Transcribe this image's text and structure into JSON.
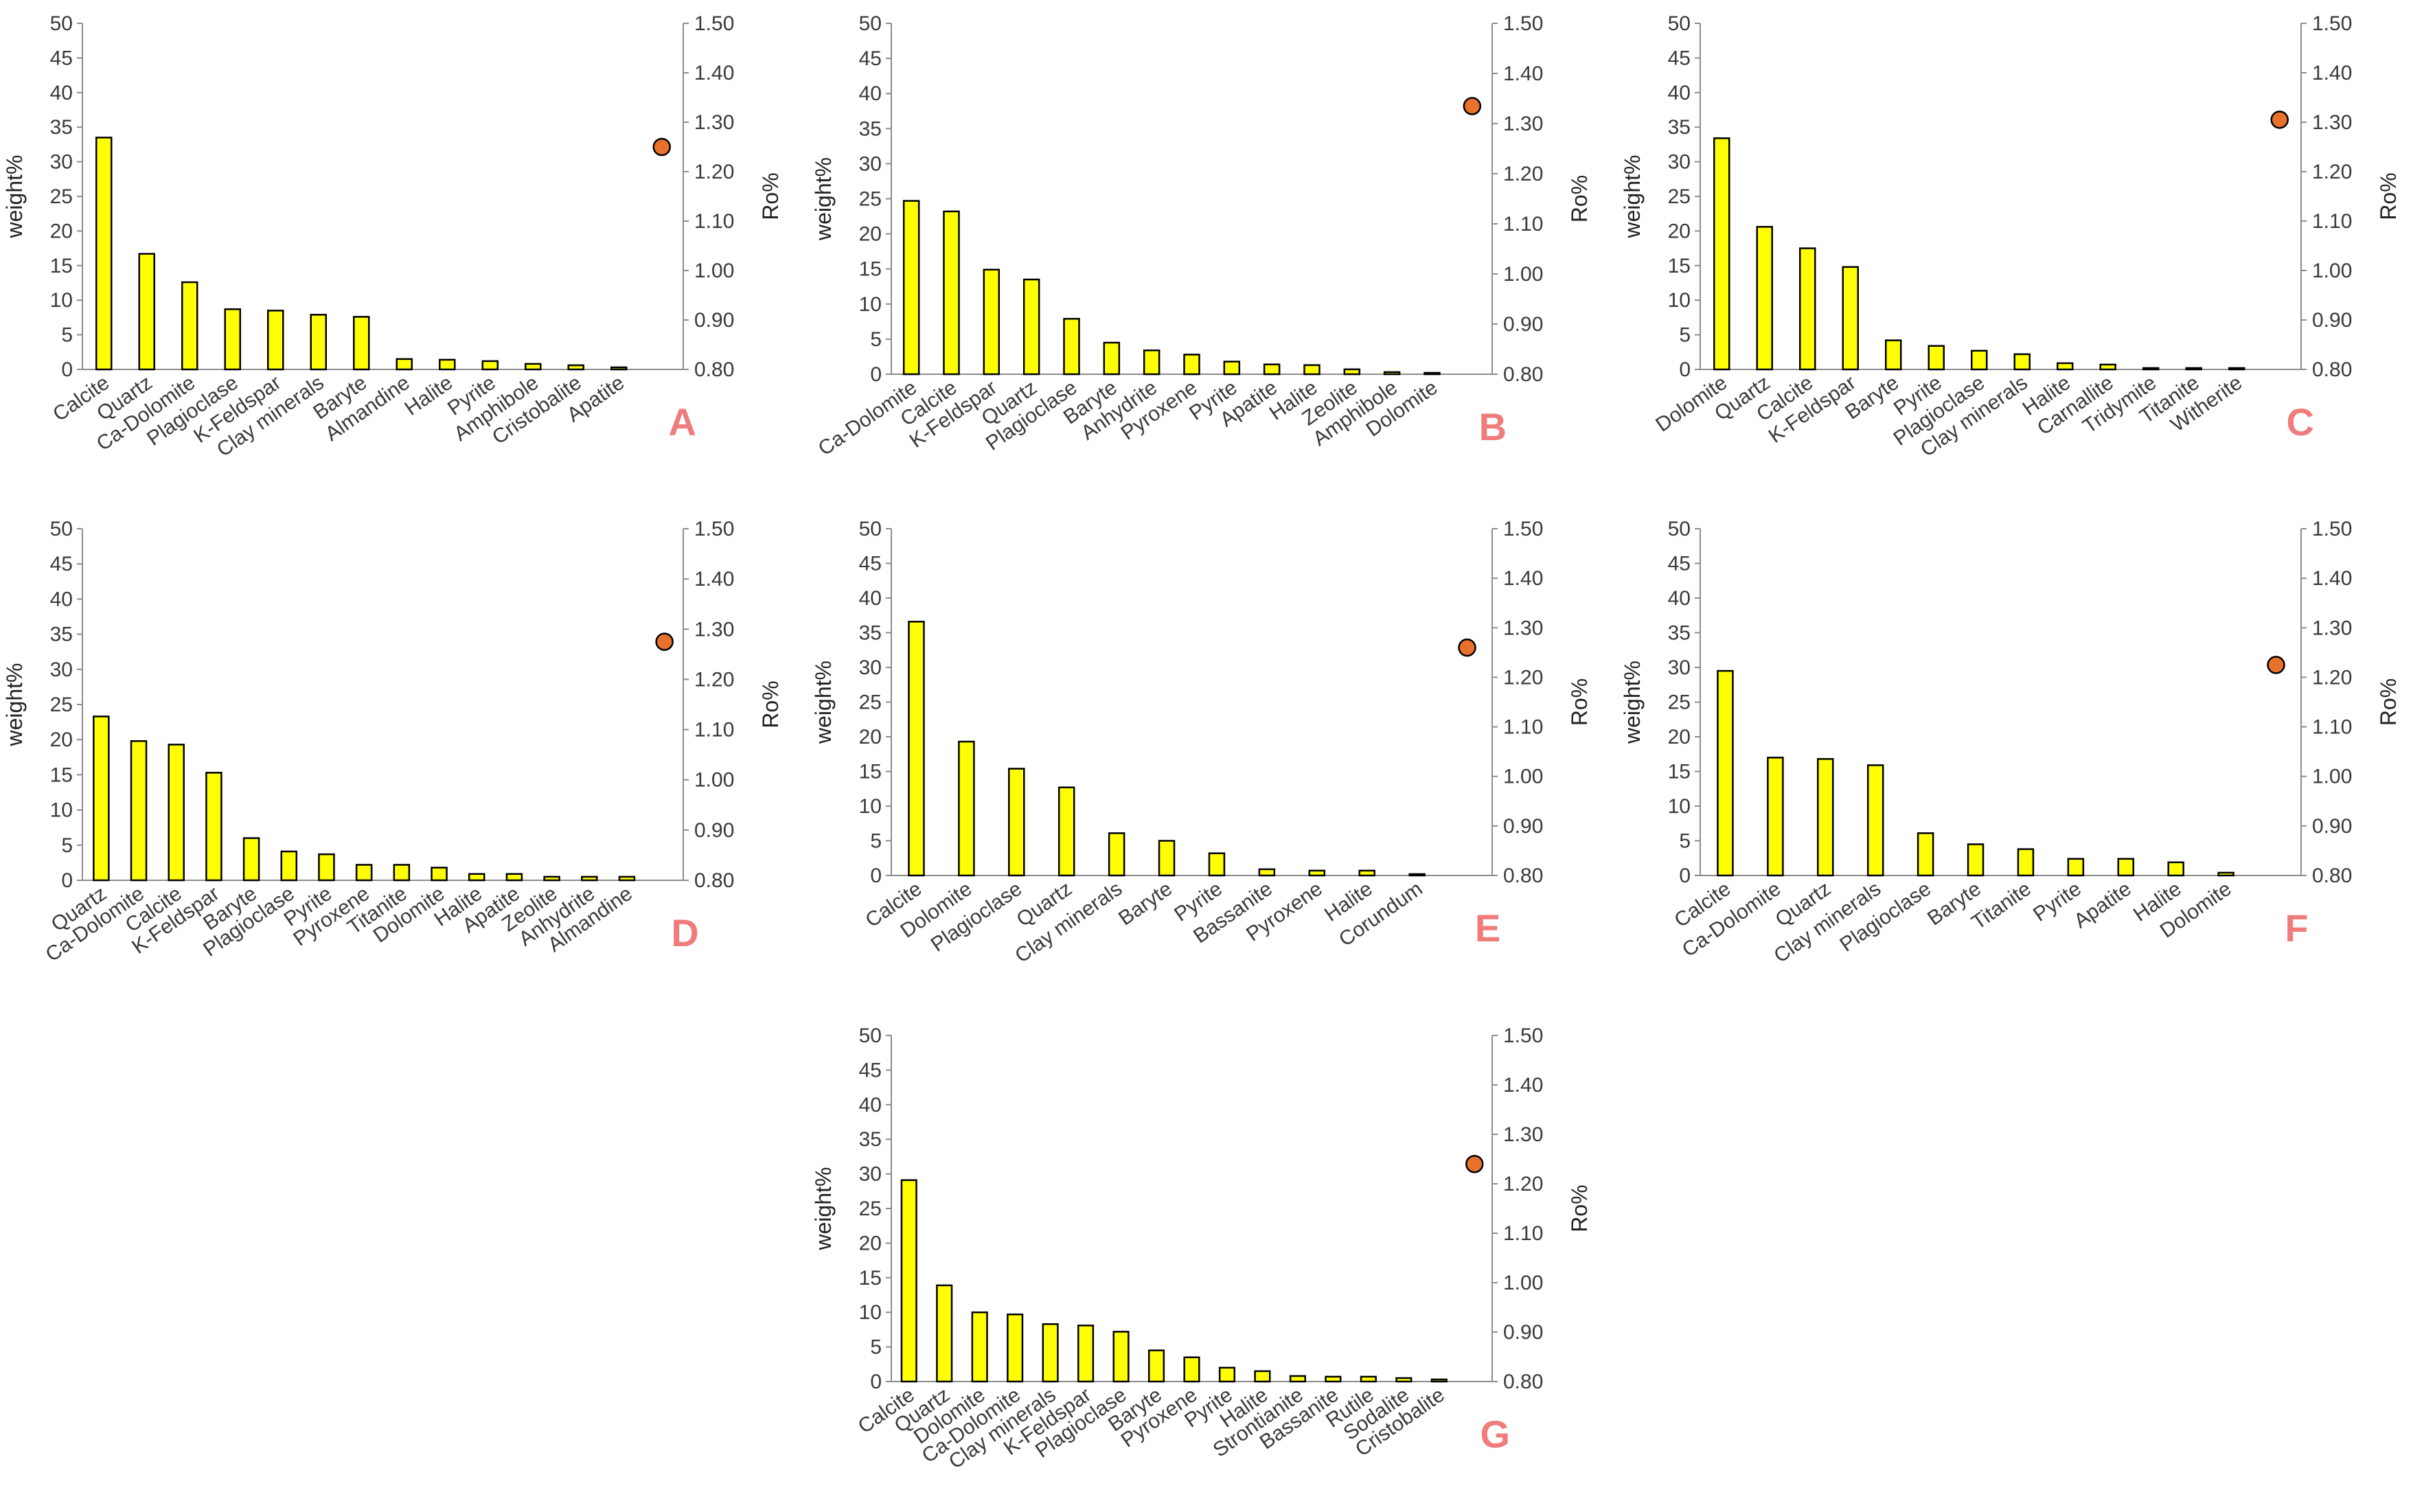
{
  "colors": {
    "bar_fill": "#ffff00",
    "point_fill": "#e8712c",
    "panel_letter": "#f07b7b"
  },
  "chart_data": [
    {
      "panel": "A",
      "type": "bar",
      "categories": [
        "Calcite",
        "Quartz",
        "Ca-Dolomite",
        "Plagioclase",
        "K-Feldspar",
        "Clay minerals",
        "Baryte",
        "Almandine",
        "Halite",
        "Pyrite",
        "Amphibole",
        "Cristobalite",
        "Apatite"
      ],
      "values": [
        33.5,
        16.7,
        12.6,
        8.7,
        8.5,
        7.9,
        7.6,
        1.5,
        1.4,
        1.2,
        0.8,
        0.6,
        0.3
      ],
      "ylabel": "weight%",
      "ylim": [
        0,
        50
      ],
      "yticks": [
        "0",
        "5",
        "10",
        "15",
        "20",
        "25",
        "30",
        "35",
        "40",
        "45",
        "50"
      ],
      "y2label": "Ro%",
      "y2lim": [
        0.8,
        1.5
      ],
      "y2ticks": [
        "0.80",
        "0.90",
        "1.00",
        "1.10",
        "1.20",
        "1.30",
        "1.40",
        "1.50"
      ],
      "ro": 1.25
    },
    {
      "panel": "B",
      "type": "bar",
      "categories": [
        "Ca-Dolomite",
        "Calcite",
        "K-Feldspar",
        "Quartz",
        "Plagioclase",
        "Baryte",
        "Anhydrite",
        "Pyroxene",
        "Pyrite",
        "Apatite",
        "Halite",
        "Zeolite",
        "Amphibole",
        "Dolomite"
      ],
      "values": [
        24.7,
        23.2,
        14.9,
        13.5,
        7.9,
        4.5,
        3.4,
        2.8,
        1.8,
        1.4,
        1.3,
        0.7,
        0.3,
        0.2
      ],
      "ylabel": "weight%",
      "ylim": [
        0,
        50
      ],
      "yticks": [
        "0",
        "5",
        "10",
        "15",
        "20",
        "25",
        "30",
        "35",
        "40",
        "45",
        "50"
      ],
      "y2label": "Ro%",
      "y2lim": [
        0.8,
        1.5
      ],
      "y2ticks": [
        "0.80",
        "0.90",
        "1.00",
        "1.10",
        "1.20",
        "1.30",
        "1.40",
        "1.50"
      ],
      "ro": 1.335
    },
    {
      "panel": "C",
      "type": "bar",
      "categories": [
        "Dolomite",
        "Quartz",
        "Calcite",
        "K-Feldspar",
        "Baryte",
        "Pyrite",
        "Plagioclase",
        "Clay minerals",
        "Halite",
        "Carnallite",
        "Tridymite",
        "Titanite",
        "Witherite"
      ],
      "values": [
        33.4,
        20.6,
        17.5,
        14.8,
        4.2,
        3.4,
        2.7,
        2.2,
        0.9,
        0.7,
        0.2,
        0.2,
        0.2
      ],
      "ylabel": "weight%",
      "ylim": [
        0,
        50
      ],
      "yticks": [
        "0",
        "5",
        "10",
        "15",
        "20",
        "25",
        "30",
        "35",
        "40",
        "45",
        "50"
      ],
      "y2label": "Ro%",
      "y2lim": [
        0.8,
        1.5
      ],
      "y2ticks": [
        "0.80",
        "0.90",
        "1.00",
        "1.10",
        "1.20",
        "1.30",
        "1.40",
        "1.50"
      ],
      "ro": 1.305
    },
    {
      "panel": "D",
      "type": "bar",
      "categories": [
        "Quartz",
        "Ca-Dolomite",
        "Calcite",
        "K-Feldspar",
        "Baryte",
        "Plagioclase",
        "Pyrite",
        "Pyroxene",
        "Titanite",
        "Dolomite",
        "Halite",
        "Apatite",
        "Zeolite",
        "Anhydrite",
        "Almandine"
      ],
      "values": [
        23.3,
        19.8,
        19.3,
        15.3,
        6.0,
        4.1,
        3.7,
        2.2,
        2.2,
        1.8,
        0.9,
        0.9,
        0.5,
        0.5,
        0.5
      ],
      "ylabel": "weight%",
      "ylim": [
        0,
        50
      ],
      "yticks": [
        "0",
        "5",
        "10",
        "15",
        "20",
        "25",
        "30",
        "35",
        "40",
        "45",
        "50"
      ],
      "y2label": "Ro%",
      "y2lim": [
        0.8,
        1.5
      ],
      "y2ticks": [
        "0.80",
        "0.90",
        "1.00",
        "1.10",
        "1.20",
        "1.30",
        "1.40",
        "1.50"
      ],
      "ro": 1.275
    },
    {
      "panel": "E",
      "type": "bar",
      "categories": [
        "Calcite",
        "Dolomite",
        "Plagioclase",
        "Quartz",
        "Clay minerals",
        "Baryte",
        "Pyrite",
        "Bassanite",
        "Pyroxene",
        "Halite",
        "Corundum"
      ],
      "values": [
        36.6,
        19.3,
        15.4,
        12.7,
        6.1,
        5.0,
        3.2,
        0.9,
        0.7,
        0.7,
        0.2
      ],
      "ylabel": "weight%",
      "ylim": [
        0,
        50
      ],
      "yticks": [
        "0",
        "5",
        "10",
        "15",
        "20",
        "25",
        "30",
        "35",
        "40",
        "45",
        "50"
      ],
      "y2label": "Ro%",
      "y2lim": [
        0.8,
        1.5
      ],
      "y2ticks": [
        "0.80",
        "0.90",
        "1.00",
        "1.10",
        "1.20",
        "1.30",
        "1.40",
        "1.50"
      ],
      "ro": 1.26
    },
    {
      "panel": "F",
      "type": "bar",
      "categories": [
        "Calcite",
        "Ca-Dolomite",
        "Quartz",
        "Clay minerals",
        "Plagioclase",
        "Baryte",
        "Titanite",
        "Pyrite",
        "Apatite",
        "Halite",
        "Dolomite"
      ],
      "values": [
        29.5,
        17.0,
        16.8,
        15.9,
        6.1,
        4.5,
        3.8,
        2.4,
        2.4,
        1.9,
        0.4
      ],
      "ylabel": "weight%",
      "ylim": [
        0,
        50
      ],
      "yticks": [
        "0",
        "5",
        "10",
        "15",
        "20",
        "25",
        "30",
        "35",
        "40",
        "45",
        "50"
      ],
      "y2label": "Ro%",
      "y2lim": [
        0.8,
        1.5
      ],
      "y2ticks": [
        "0.80",
        "0.90",
        "1.00",
        "1.10",
        "1.20",
        "1.30",
        "1.40",
        "1.50"
      ],
      "ro": 1.225
    },
    {
      "panel": "G",
      "type": "bar",
      "categories": [
        "Calcite",
        "Quartz",
        "Dolomite",
        "Ca-Dolomite",
        "Clay minerals",
        "K-Feldspar",
        "Plagioclase",
        "Baryte",
        "Pyroxene",
        "Pyrite",
        "Halite",
        "Strontianite",
        "Bassanite",
        "Rutile",
        "Sodalite",
        "Cristobalite"
      ],
      "values": [
        29.1,
        13.9,
        10.0,
        9.7,
        8.3,
        8.1,
        7.2,
        4.5,
        3.5,
        2.0,
        1.5,
        0.8,
        0.7,
        0.7,
        0.5,
        0.3
      ],
      "ylabel": "weight%",
      "ylim": [
        0,
        50
      ],
      "yticks": [
        "0",
        "5",
        "10",
        "15",
        "20",
        "25",
        "30",
        "35",
        "40",
        "45",
        "50"
      ],
      "y2label": "Ro%",
      "y2lim": [
        0.8,
        1.5
      ],
      "y2ticks": [
        "0.80",
        "0.90",
        "1.00",
        "1.10",
        "1.20",
        "1.30",
        "1.40",
        "1.50"
      ],
      "ro": 1.24
    }
  ]
}
